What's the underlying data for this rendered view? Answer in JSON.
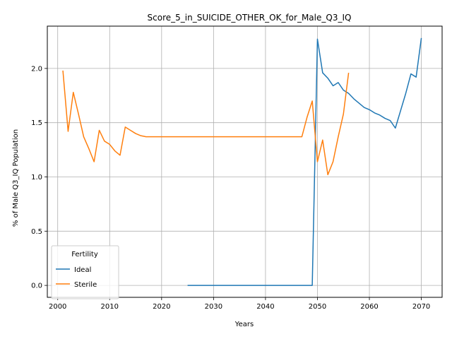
{
  "chart_data": {
    "type": "line",
    "title": "Score_5_in_SUICIDE_OTHER_OK_for_Male_Q3_IQ",
    "xlabel": "Years",
    "ylabel": "% of Male Q3_IQ Population",
    "xlim": [
      1998,
      2074
    ],
    "ylim": [
      -0.11,
      2.39
    ],
    "xticks": [
      2000,
      2010,
      2020,
      2030,
      2040,
      2050,
      2060,
      2070
    ],
    "yticks": [
      0.0,
      0.5,
      1.0,
      1.5,
      2.0
    ],
    "xtick_labels": [
      "2000",
      "2010",
      "2020",
      "2030",
      "2040",
      "2050",
      "2060",
      "2070"
    ],
    "ytick_labels": [
      "0.0",
      "0.5",
      "1.0",
      "1.5",
      "2.0"
    ],
    "grid": true,
    "legend": {
      "title": "Fertility",
      "placement": "lower-left"
    },
    "series": [
      {
        "name": "Ideal",
        "color": "#1f77b4",
        "x": [
          2025,
          2026,
          2027,
          2028,
          2029,
          2030,
          2031,
          2032,
          2033,
          2034,
          2035,
          2036,
          2037,
          2038,
          2039,
          2040,
          2041,
          2042,
          2043,
          2044,
          2045,
          2046,
          2047,
          2048,
          2049,
          2050,
          2051,
          2052,
          2053,
          2054,
          2055,
          2056,
          2057,
          2058,
          2059,
          2060,
          2061,
          2062,
          2063,
          2064,
          2065,
          2066,
          2067,
          2068,
          2069,
          2070
        ],
        "y": [
          0,
          0,
          0,
          0,
          0,
          0,
          0,
          0,
          0,
          0,
          0,
          0,
          0,
          0,
          0,
          0,
          0,
          0,
          0,
          0,
          0,
          0,
          0,
          0,
          0,
          2.27,
          1.96,
          1.91,
          1.84,
          1.87,
          1.8,
          1.77,
          1.72,
          1.68,
          1.64,
          1.62,
          1.59,
          1.57,
          1.54,
          1.52,
          1.45,
          1.61,
          1.77,
          1.95,
          1.92,
          2.28
        ]
      },
      {
        "name": "Sterile",
        "color": "#ff7f0e",
        "x": [
          2001,
          2002,
          2003,
          2004,
          2005,
          2006,
          2007,
          2008,
          2009,
          2010,
          2011,
          2012,
          2013,
          2014,
          2015,
          2016,
          2017,
          2018,
          2019,
          2020,
          2021,
          2022,
          2023,
          2024,
          2025,
          2026,
          2027,
          2028,
          2029,
          2030,
          2031,
          2032,
          2033,
          2034,
          2035,
          2036,
          2037,
          2038,
          2039,
          2040,
          2041,
          2042,
          2043,
          2044,
          2045,
          2046,
          2047,
          2048,
          2049,
          2050,
          2051,
          2052,
          2053,
          2054,
          2055,
          2056
        ],
        "y": [
          1.98,
          1.42,
          1.78,
          1.58,
          1.37,
          1.26,
          1.14,
          1.43,
          1.33,
          1.3,
          1.24,
          1.2,
          1.46,
          1.43,
          1.4,
          1.38,
          1.37,
          1.37,
          1.37,
          1.37,
          1.37,
          1.37,
          1.37,
          1.37,
          1.37,
          1.37,
          1.37,
          1.37,
          1.37,
          1.37,
          1.37,
          1.37,
          1.37,
          1.37,
          1.37,
          1.37,
          1.37,
          1.37,
          1.37,
          1.37,
          1.37,
          1.37,
          1.37,
          1.37,
          1.37,
          1.37,
          1.37,
          1.55,
          1.7,
          1.14,
          1.34,
          1.02,
          1.14,
          1.37,
          1.58,
          1.96
        ]
      }
    ]
  }
}
